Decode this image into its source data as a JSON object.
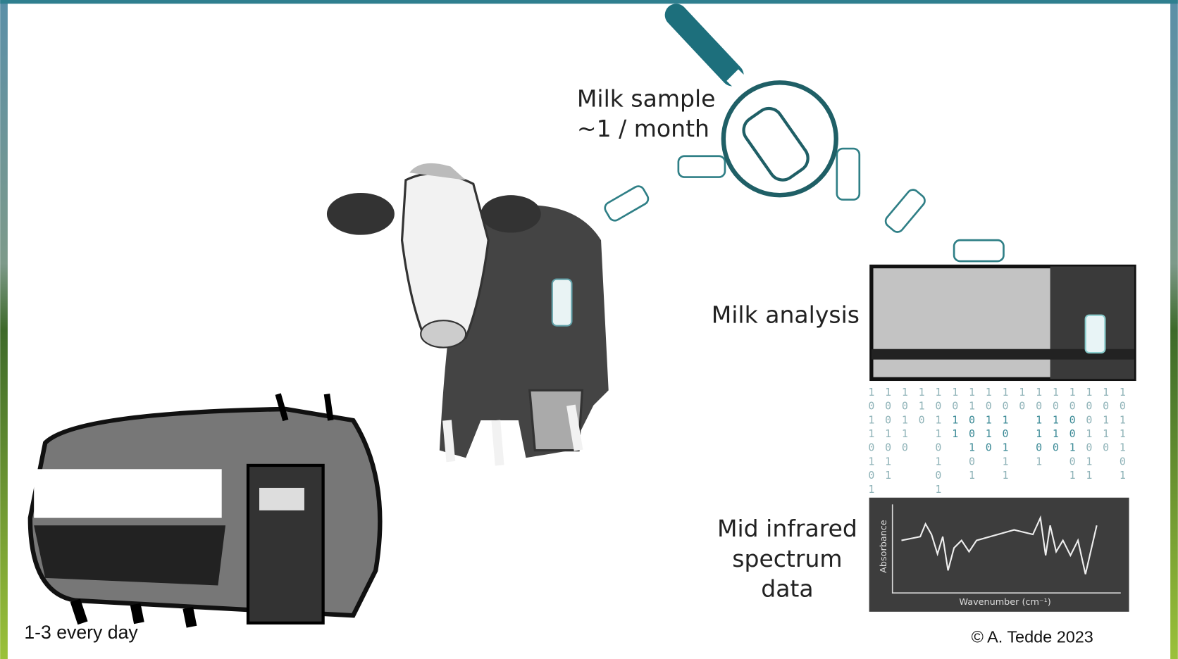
{
  "milk_sample": {
    "line1": "Milk sample",
    "line2": "~1 / month"
  },
  "milk_analysis": "Milk analysis",
  "spectrum": {
    "line1": "Mid infrared",
    "line2": "spectrum",
    "line3": "data",
    "y_axis": "Absorbance",
    "x_axis": "Wavenumber (cm⁻¹)"
  },
  "tank_label": "1-3 every day",
  "copyright": "© A. Tedde 2023",
  "binary": [
    "10110101",
    "1001011",
    "10110",
    "110",
    "10110101",
    "1011",
    "1100101",
    "10110",
    "1010111",
    "10",
    "101101",
    "10110",
    "1000101",
    "1001011",
    "10110",
    "1011101"
  ]
}
